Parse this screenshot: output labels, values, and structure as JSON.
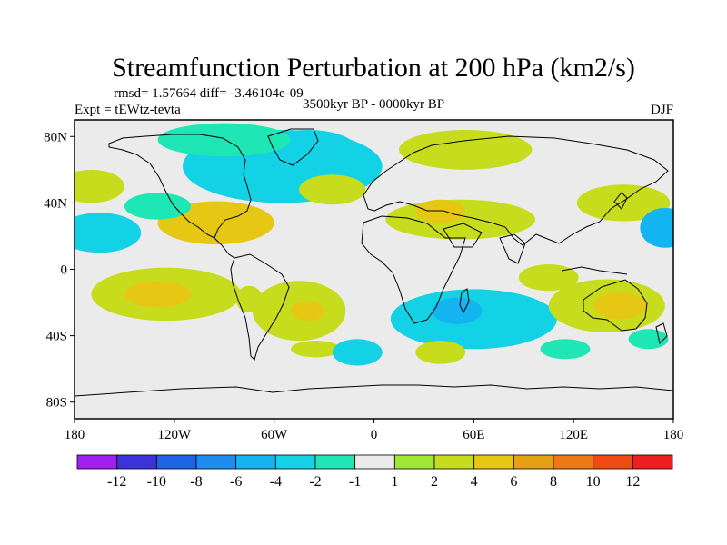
{
  "chart_data": {
    "type": "heatmap",
    "title": "Streamfunction Perturbation at 200 hPa (km2/s)",
    "stats_line": "rmsd= 1.57664 diff= -3.46104e-09",
    "experiment": "Expt = tEWtz-tevta",
    "period": "3500kyr BP - 0000kyr BP",
    "season": "DJF",
    "x_ticks": [
      {
        "lon": -180,
        "label": "180"
      },
      {
        "lon": -120,
        "label": "120W"
      },
      {
        "lon": -60,
        "label": "60W"
      },
      {
        "lon": 0,
        "label": "0"
      },
      {
        "lon": 60,
        "label": "60E"
      },
      {
        "lon": 120,
        "label": "120E"
      },
      {
        "lon": 180,
        "label": "180"
      }
    ],
    "y_ticks": [
      {
        "lat": 80,
        "label": "80N"
      },
      {
        "lat": 40,
        "label": "40N"
      },
      {
        "lat": 0,
        "label": "0"
      },
      {
        "lat": -40,
        "label": "40S"
      },
      {
        "lat": -80,
        "label": "80S"
      }
    ],
    "xlim": [
      -180,
      180
    ],
    "ylim": [
      -90,
      90
    ],
    "colorbar": {
      "labels": [
        "-12",
        "-10",
        "-8",
        "-6",
        "-4",
        "-2",
        "-1",
        "1",
        "2",
        "4",
        "6",
        "8",
        "10",
        "12"
      ],
      "colors": [
        "#a020f0",
        "#3c32dc",
        "#1e64e6",
        "#1e8cf0",
        "#14b4f0",
        "#14d2e6",
        "#1ee6b4",
        "#ebebeb",
        "#a0e632",
        "#c8dc1e",
        "#e6c814",
        "#e6a014",
        "#f07814",
        "#f04b14",
        "#f01e1e"
      ]
    },
    "features": [
      {
        "lon": -55,
        "lat": 62,
        "rx": 60,
        "ry": 22,
        "value": -2.5
      },
      {
        "lon": -40,
        "lat": 72,
        "rx": 30,
        "ry": 12,
        "value": -4
      },
      {
        "lon": -90,
        "lat": 78,
        "rx": 40,
        "ry": 10,
        "value": -1.5
      },
      {
        "lon": 55,
        "lat": 72,
        "rx": 40,
        "ry": 12,
        "value": 2.5
      },
      {
        "lon": -25,
        "lat": 48,
        "rx": 20,
        "ry": 9,
        "value": 2.5
      },
      {
        "lon": 52,
        "lat": 30,
        "rx": 45,
        "ry": 12,
        "value": 3
      },
      {
        "lon": 40,
        "lat": 35,
        "rx": 15,
        "ry": 7,
        "value": 4.5
      },
      {
        "lon": 150,
        "lat": 40,
        "rx": 28,
        "ry": 11,
        "value": 3
      },
      {
        "lon": -95,
        "lat": 28,
        "rx": 35,
        "ry": 13,
        "value": 4
      },
      {
        "lon": -80,
        "lat": 30,
        "rx": 12,
        "ry": 6,
        "value": 5
      },
      {
        "lon": -165,
        "lat": 22,
        "rx": 25,
        "ry": 12,
        "value": -4
      },
      {
        "lon": -170,
        "lat": 50,
        "rx": 20,
        "ry": 10,
        "value": 2.5
      },
      {
        "lon": -130,
        "lat": 38,
        "rx": 20,
        "ry": 8,
        "value": -1.5
      },
      {
        "lon": 175,
        "lat": 25,
        "rx": 15,
        "ry": 12,
        "value": -4.5
      },
      {
        "lon": -125,
        "lat": -15,
        "rx": 45,
        "ry": 16,
        "value": 3
      },
      {
        "lon": -130,
        "lat": -15,
        "rx": 20,
        "ry": 8,
        "value": 5
      },
      {
        "lon": -75,
        "lat": -18,
        "rx": 8,
        "ry": 8,
        "value": 2.5
      },
      {
        "lon": -45,
        "lat": -25,
        "rx": 28,
        "ry": 18,
        "value": 3
      },
      {
        "lon": -40,
        "lat": -25,
        "rx": 10,
        "ry": 6,
        "value": 5
      },
      {
        "lon": -35,
        "lat": -48,
        "rx": 15,
        "ry": 5,
        "value": 2.5
      },
      {
        "lon": 60,
        "lat": -30,
        "rx": 50,
        "ry": 18,
        "value": -2.5
      },
      {
        "lon": 50,
        "lat": -25,
        "rx": 15,
        "ry": 8,
        "value": -4.5
      },
      {
        "lon": 140,
        "lat": -22,
        "rx": 35,
        "ry": 16,
        "value": 2.5
      },
      {
        "lon": 148,
        "lat": -22,
        "rx": 16,
        "ry": 8,
        "value": 5
      },
      {
        "lon": 115,
        "lat": -48,
        "rx": 15,
        "ry": 6,
        "value": -2
      },
      {
        "lon": 165,
        "lat": -42,
        "rx": 12,
        "ry": 6,
        "value": -2
      },
      {
        "lon": -10,
        "lat": -50,
        "rx": 15,
        "ry": 8,
        "value": -2.5
      },
      {
        "lon": 40,
        "lat": -50,
        "rx": 15,
        "ry": 7,
        "value": 2.5
      },
      {
        "lon": 105,
        "lat": -5,
        "rx": 18,
        "ry": 8,
        "value": 2
      }
    ]
  }
}
